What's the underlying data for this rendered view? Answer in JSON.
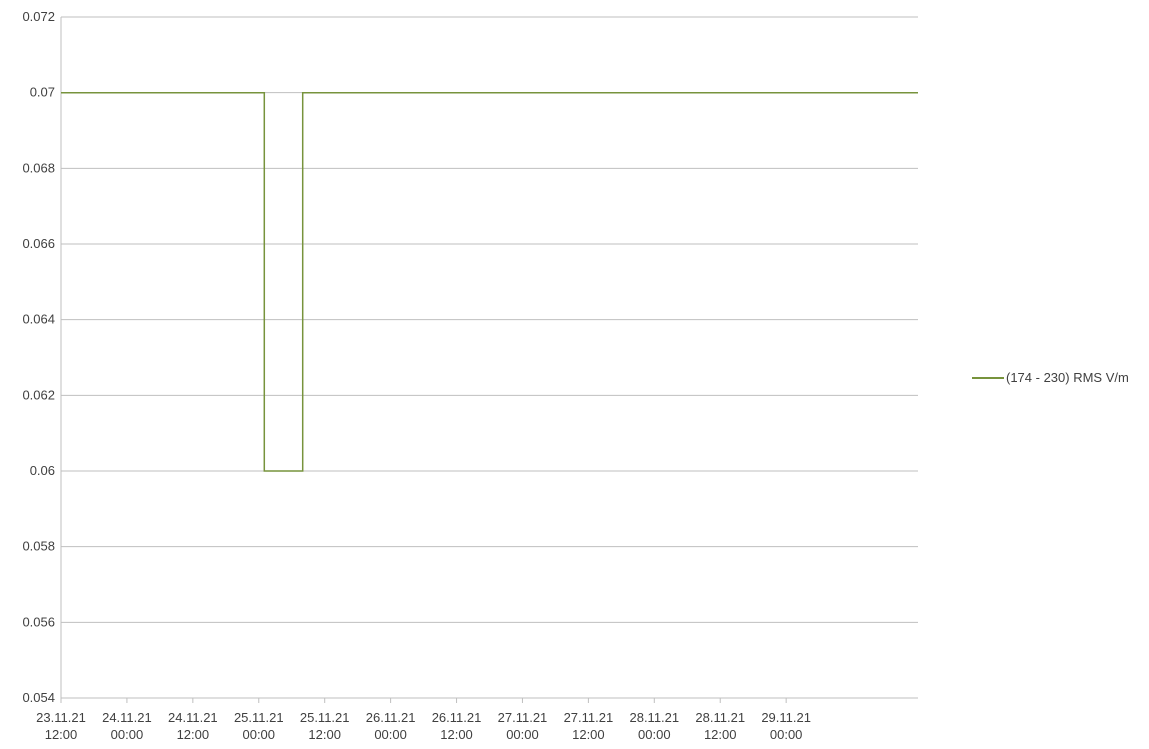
{
  "chart_data": {
    "type": "line",
    "title": "",
    "xlabel": "",
    "ylabel": "",
    "ylim": [
      0.054,
      0.072
    ],
    "yticks": [
      "0.054",
      "0.056",
      "0.058",
      "0.06",
      "0.062",
      "0.064",
      "0.066",
      "0.068",
      "0.07",
      "0.072"
    ],
    "xlim": [
      "23.11.21 12:00",
      "30.11.21 00:00"
    ],
    "xticks": [
      {
        "date": "23.11.21",
        "time": "12:00"
      },
      {
        "date": "24.11.21",
        "time": "00:00"
      },
      {
        "date": "24.11.21",
        "time": "12:00"
      },
      {
        "date": "25.11.21",
        "time": "00:00"
      },
      {
        "date": "25.11.21",
        "time": "12:00"
      },
      {
        "date": "26.11.21",
        "time": "00:00"
      },
      {
        "date": "26.11.21",
        "time": "12:00"
      },
      {
        "date": "27.11.21",
        "time": "00:00"
      },
      {
        "date": "27.11.21",
        "time": "12:00"
      },
      {
        "date": "28.11.21",
        "time": "00:00"
      },
      {
        "date": "28.11.21",
        "time": "12:00"
      },
      {
        "date": "29.11.21",
        "time": "00:00"
      }
    ],
    "grid": true,
    "legend_position": "right",
    "series": [
      {
        "name": "(174 - 230) RMS  V/m",
        "color": "#77933c",
        "points": [
          {
            "x": "23.11.21 12:00",
            "y": 0.07
          },
          {
            "x": "25.11.21 01:00",
            "y": 0.07
          },
          {
            "x": "25.11.21 01:00",
            "y": 0.06
          },
          {
            "x": "25.11.21 08:00",
            "y": 0.06
          },
          {
            "x": "25.11.21 08:00",
            "y": 0.07
          },
          {
            "x": "30.11.21 00:00",
            "y": 0.07
          }
        ]
      }
    ]
  }
}
